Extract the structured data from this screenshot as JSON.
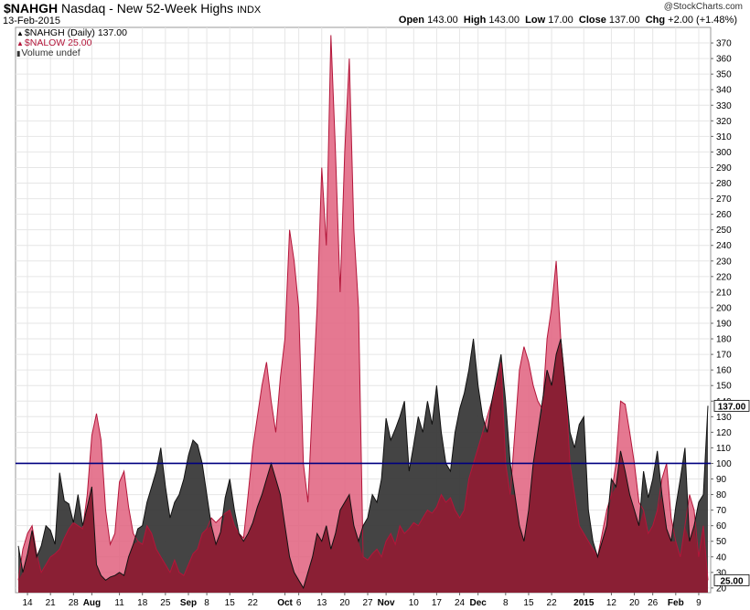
{
  "header": {
    "symbol": "$NAHGH",
    "description": "Nasdaq - New 52-Week Highs",
    "exchange": "INDX",
    "date": "13-Feb-2015",
    "credit": "@StockCharts.com",
    "open_label": "Open",
    "open": "143.00",
    "high_label": "High",
    "high": "143.00",
    "low_label": "Low",
    "low": "17.00",
    "close_label": "Close",
    "close": "137.00",
    "chg_label": "Chg",
    "chg": "+2.00 (+1.48%)"
  },
  "legend": {
    "nahgh": "$NAHGH (Daily) 137.00",
    "nalow": "$NALOW 25.00",
    "volume": "Volume undef"
  },
  "colors": {
    "nahgh_fill": "#3a3a3a",
    "nalow_fill": "#e0607e",
    "overlap_fill": "#8a1f34",
    "reference_line": "#000080",
    "grid": "#e6e6e6"
  },
  "chart_data": {
    "type": "area",
    "ylim": [
      17,
      380
    ],
    "yticks": [
      20,
      30,
      40,
      50,
      60,
      70,
      80,
      90,
      100,
      110,
      120,
      130,
      140,
      150,
      160,
      170,
      180,
      190,
      200,
      210,
      220,
      230,
      240,
      250,
      260,
      270,
      280,
      290,
      300,
      310,
      320,
      330,
      340,
      350,
      360,
      370
    ],
    "reference_line": 100,
    "last_values": {
      "nahgh": "137.00",
      "nalow": "25.00"
    },
    "x_labels": [
      {
        "label": "14",
        "index": 2,
        "bold": false
      },
      {
        "label": "21",
        "index": 7,
        "bold": false
      },
      {
        "label": "28",
        "index": 12,
        "bold": false
      },
      {
        "label": "Aug",
        "index": 16,
        "bold": true
      },
      {
        "label": "11",
        "index": 22,
        "bold": false
      },
      {
        "label": "18",
        "index": 27,
        "bold": false
      },
      {
        "label": "25",
        "index": 32,
        "bold": false
      },
      {
        "label": "Sep",
        "index": 37,
        "bold": true
      },
      {
        "label": "8",
        "index": 41,
        "bold": false
      },
      {
        "label": "15",
        "index": 46,
        "bold": false
      },
      {
        "label": "22",
        "index": 51,
        "bold": false
      },
      {
        "label": "Oct",
        "index": 58,
        "bold": true
      },
      {
        "label": "6",
        "index": 61,
        "bold": false
      },
      {
        "label": "13",
        "index": 66,
        "bold": false
      },
      {
        "label": "20",
        "index": 71,
        "bold": false
      },
      {
        "label": "27",
        "index": 76,
        "bold": false
      },
      {
        "label": "Nov",
        "index": 80,
        "bold": true
      },
      {
        "label": "10",
        "index": 86,
        "bold": false
      },
      {
        "label": "17",
        "index": 91,
        "bold": false
      },
      {
        "label": "24",
        "index": 96,
        "bold": false
      },
      {
        "label": "Dec",
        "index": 100,
        "bold": true
      },
      {
        "label": "8",
        "index": 106,
        "bold": false
      },
      {
        "label": "15",
        "index": 111,
        "bold": false
      },
      {
        "label": "22",
        "index": 116,
        "bold": false
      },
      {
        "label": "2015",
        "index": 123,
        "bold": true
      },
      {
        "label": "12",
        "index": 129,
        "bold": false
      },
      {
        "label": "20",
        "index": 134,
        "bold": false
      },
      {
        "label": "26",
        "index": 138,
        "bold": false
      },
      {
        "label": "Feb",
        "index": 143,
        "bold": true
      },
      {
        "label": "9",
        "index": 148,
        "bold": false
      }
    ],
    "series": [
      {
        "name": "$NAHGH",
        "values": [
          47,
          30,
          42,
          57,
          40,
          47,
          60,
          57,
          48,
          94,
          76,
          74,
          62,
          80,
          60,
          72,
          85,
          35,
          28,
          25,
          27,
          28,
          30,
          28,
          40,
          48,
          58,
          60,
          75,
          85,
          95,
          110,
          85,
          65,
          75,
          80,
          90,
          105,
          115,
          112,
          100,
          80,
          60,
          48,
          56,
          78,
          90,
          70,
          55,
          50,
          55,
          62,
          72,
          80,
          90,
          100,
          90,
          80,
          60,
          40,
          30,
          25,
          20,
          30,
          40,
          55,
          50,
          60,
          45,
          55,
          70,
          75,
          80,
          60,
          50,
          60,
          65,
          80,
          75,
          90,
          129,
          115,
          122,
          130,
          140,
          95,
          112,
          130,
          120,
          140,
          125,
          150,
          120,
          100,
          95,
          120,
          135,
          145,
          160,
          180,
          150,
          130,
          120,
          140,
          155,
          170,
          140,
          100,
          80,
          60,
          50,
          70,
          100,
          120,
          140,
          160,
          150,
          170,
          180,
          150,
          120,
          110,
          125,
          130,
          70,
          50,
          40,
          50,
          60,
          90,
          85,
          108,
          95,
          80,
          70,
          60,
          95,
          78,
          90,
          108,
          80,
          58,
          50,
          72,
          90,
          110,
          50,
          60,
          75,
          80,
          137
        ],
        "color": "#3a3a3a"
      },
      {
        "name": "$NALOW",
        "values": [
          25,
          45,
          55,
          60,
          42,
          30,
          35,
          40,
          42,
          45,
          52,
          58,
          62,
          60,
          58,
          80,
          118,
          132,
          115,
          70,
          48,
          55,
          88,
          95,
          72,
          55,
          50,
          48,
          60,
          55,
          45,
          40,
          35,
          30,
          38,
          30,
          28,
          35,
          42,
          45,
          55,
          58,
          65,
          62,
          65,
          68,
          70,
          60,
          55,
          52,
          80,
          110,
          130,
          150,
          165,
          140,
          120,
          155,
          180,
          250,
          230,
          200,
          100,
          75,
          140,
          200,
          290,
          240,
          375,
          300,
          210,
          300,
          360,
          250,
          200,
          40,
          38,
          42,
          45,
          40,
          50,
          55,
          48,
          60,
          55,
          58,
          62,
          60,
          65,
          70,
          68,
          72,
          80,
          75,
          78,
          70,
          65,
          70,
          90,
          100,
          110,
          120,
          130,
          140,
          150,
          165,
          100,
          80,
          120,
          160,
          175,
          165,
          150,
          140,
          135,
          180,
          200,
          230,
          180,
          150,
          100,
          80,
          60,
          55,
          50,
          45,
          40,
          55,
          70,
          80,
          100,
          140,
          138,
          120,
          100,
          75,
          70,
          55,
          60,
          70,
          90,
          100,
          65,
          50,
          40,
          60,
          80,
          70,
          40,
          60,
          25
        ]
      }
    ]
  }
}
